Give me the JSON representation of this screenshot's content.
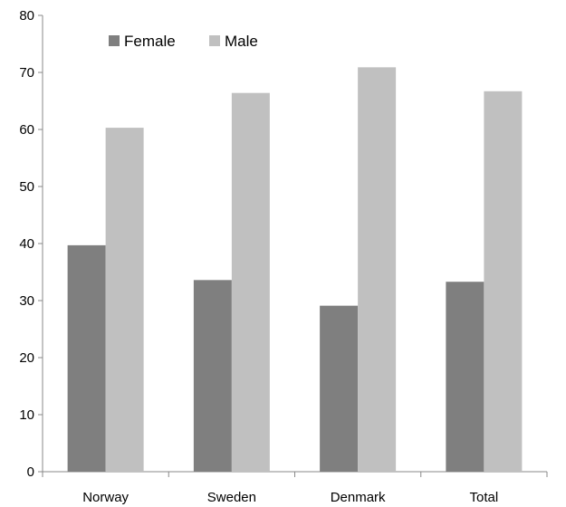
{
  "chart_data": {
    "type": "bar",
    "title": "",
    "xlabel": "",
    "ylabel": "",
    "categories": [
      "Norway",
      "Sweden",
      "Denmark",
      "Total"
    ],
    "series": [
      {
        "name": "Female",
        "values": [
          39.7,
          33.6,
          29.1,
          33.3
        ],
        "color": "#7f7f7f"
      },
      {
        "name": "Male",
        "values": [
          60.3,
          66.4,
          70.9,
          66.7
        ],
        "color": "#c0c0c0"
      }
    ],
    "ylim": [
      0,
      80
    ],
    "yticks": [
      0,
      10,
      20,
      30,
      40,
      50,
      60,
      70,
      80
    ],
    "grid": false,
    "legend_position": "top-left"
  }
}
